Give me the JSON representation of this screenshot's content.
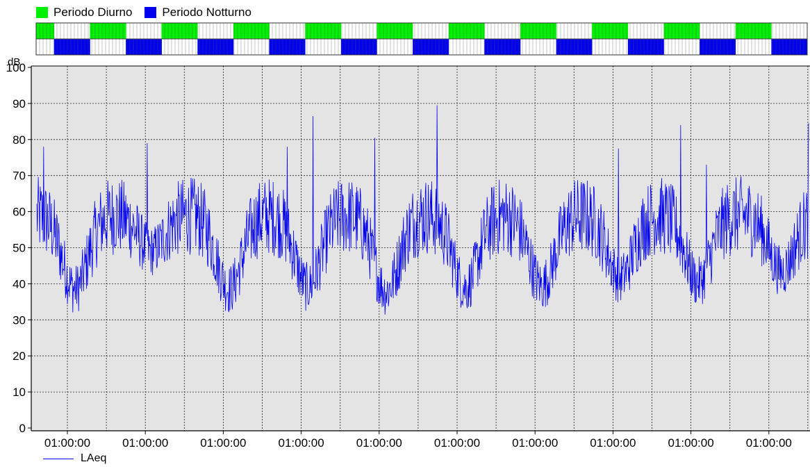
{
  "colors": {
    "day": "#00f000",
    "night": "#0000ee",
    "series": "#0000ee",
    "plot_bg": "#e4e4e4",
    "grid": "#202020"
  },
  "legend_top": {
    "day_label": "Periodo Diurno",
    "night_label": "Periodo Notturno"
  },
  "legend_bottom": {
    "series_label": "LAeq"
  },
  "period_bar": {
    "sequence": [
      "day",
      "night",
      "night",
      "day",
      "day",
      "night",
      "night",
      "day",
      "day",
      "night",
      "night",
      "day",
      "day",
      "night",
      "night",
      "day",
      "day",
      "night",
      "night",
      "day",
      "day",
      "night",
      "night",
      "day",
      "day",
      "night",
      "night",
      "day",
      "day",
      "night",
      "night",
      "day",
      "day",
      "night",
      "night",
      "day",
      "day",
      "night",
      "night",
      "day",
      "day",
      "night",
      "night"
    ]
  },
  "chart_data": {
    "type": "line",
    "ylabel": "dB",
    "ylim": [
      0,
      100
    ],
    "yticks": [
      0,
      10,
      20,
      30,
      40,
      50,
      60,
      70,
      80,
      90,
      100
    ],
    "xticks": [
      "01:00:00",
      "01:00:00",
      "01:00:00",
      "01:00:00",
      "01:00:00",
      "01:00:00",
      "01:00:00",
      "01:00:00",
      "01:00:00",
      "01:00:00"
    ],
    "grid": true,
    "legend_placement": "bottom-left",
    "series": [
      {
        "name": "LAeq",
        "day_level_range": [
          48,
          70
        ],
        "night_level_range": [
          30,
          45
        ],
        "night_minima": [
          30.5,
          41,
          30.5,
          31,
          30,
          31,
          31.5,
          33.5,
          32.5,
          35.5
        ],
        "spikes": [
          {
            "day_index": 0,
            "value": 78
          },
          {
            "day_index": 1,
            "value": 79
          },
          {
            "day_index": 3,
            "value": 78
          },
          {
            "day_index": 3,
            "value": 86.5
          },
          {
            "day_index": 4,
            "value": 80.5
          },
          {
            "day_index": 5,
            "value": 89.5
          },
          {
            "day_index": 7,
            "value": 77.5
          },
          {
            "day_index": 8,
            "value": 84
          },
          {
            "day_index": 8,
            "value": 73
          },
          {
            "day_index": 10,
            "value": 84.5
          }
        ]
      }
    ]
  }
}
